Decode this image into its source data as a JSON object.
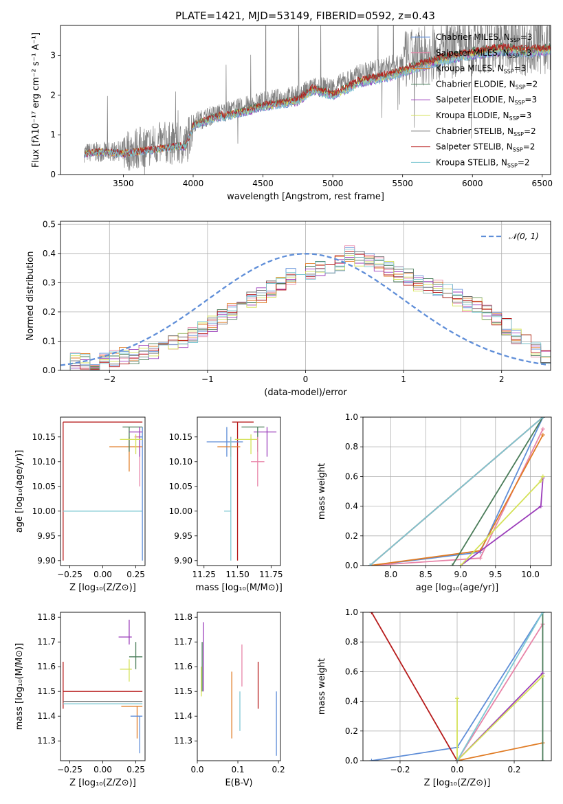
{
  "colors": {
    "chabrier_miles": "#5f8ed8",
    "salpeter_miles": "#e884a8",
    "kroupa_miles": "#e07b24",
    "chabrier_elodie": "#4a7c59",
    "salpeter_elodie": "#9b3dba",
    "kroupa_elodie": "#d4e157",
    "chabrier_stelib": "#6f6f6f",
    "salpeter_stelib": "#b71c1c",
    "kroupa_stelib": "#7ec8d3",
    "gaussian": "#5f8ed8"
  },
  "chart_data": [
    {
      "type": "line",
      "title": "PLATE=1421, MJD=53149, FIBERID=0592, z=0.43",
      "xlabel": "wavelength [Angstrom, rest frame]",
      "ylabel": "Flux [fλ10⁻¹⁷ erg cm⁻² s⁻¹ A⁻¹]",
      "xlim": [
        3050,
        6560
      ],
      "ylim": [
        0,
        3.75
      ],
      "xticks": [
        "3500",
        "4000",
        "4500",
        "5000",
        "5500",
        "6000",
        "6500"
      ],
      "yticks": [
        "0",
        "1",
        "2",
        "3"
      ],
      "legend_position": "top-right",
      "legend": [
        "Chabrier MILES, N_SSP=3",
        "Salpeter MILES, N_SSP=3",
        "Kroupa MILES, N_SSP=3",
        "Chabrier ELODIE, N_SSP=2",
        "Salpeter ELODIE, N_SSP=3",
        "Kroupa ELODIE, N_SSP=3",
        "Chabrier STELIB, N_SSP=2",
        "Salpeter STELIB, N_SSP=2",
        "Kroupa STELIB, N_SSP=2"
      ],
      "data_spectrum": {
        "x": [
          3220,
          3500,
          3800,
          3950,
          4000,
          4100,
          4300,
          4500,
          4750,
          4860,
          5000,
          5200,
          5400,
          5600,
          5800,
          6000,
          6200,
          6400,
          6560
        ],
        "y": [
          0.55,
          0.6,
          0.8,
          0.75,
          1.3,
          1.45,
          1.65,
          1.85,
          2.0,
          2.2,
          2.2,
          2.55,
          2.75,
          2.95,
          3.1,
          3.2,
          3.35,
          3.2,
          3.3
        ]
      },
      "model_spectrum": {
        "x": [
          3220,
          3350,
          3500,
          3700,
          3900,
          3950,
          4000,
          4150,
          4300,
          4500,
          4750,
          4860,
          5000,
          5200,
          5400,
          5600,
          5800,
          6000,
          6200,
          6400,
          6560
        ],
        "y": [
          0.55,
          0.6,
          0.55,
          0.65,
          0.75,
          0.75,
          1.3,
          1.5,
          1.6,
          1.8,
          1.95,
          2.25,
          2.1,
          2.45,
          2.6,
          2.85,
          3.05,
          3.2,
          3.3,
          3.25,
          3.3
        ]
      }
    },
    {
      "type": "step-histogram",
      "xlabel": "(data-model)/error",
      "ylabel": "Normed distribution",
      "xlim": [
        -2.5,
        2.5
      ],
      "ylim": [
        0,
        0.51
      ],
      "xticks": [
        "−2",
        "−1",
        "0",
        "1",
        "2"
      ],
      "yticks": [
        "0.0",
        "0.1",
        "0.2",
        "0.3",
        "0.4",
        "0.5"
      ],
      "grid": true,
      "legend_position": "top-right",
      "gaussian_label": "𝒩(0, 1)",
      "bin_edges_range": [
        -2.5,
        2.5
      ],
      "bins": 50,
      "histogram_values": [
        0.02,
        0.03,
        0.03,
        0.03,
        0.04,
        0.04,
        0.05,
        0.05,
        0.06,
        0.07,
        0.08,
        0.09,
        0.1,
        0.12,
        0.14,
        0.16,
        0.18,
        0.2,
        0.22,
        0.24,
        0.26,
        0.28,
        0.3,
        0.32,
        0.33,
        0.34,
        0.35,
        0.36,
        0.37,
        0.4,
        0.38,
        0.37,
        0.36,
        0.35,
        0.33,
        0.32,
        0.3,
        0.29,
        0.28,
        0.27,
        0.25,
        0.23,
        0.22,
        0.2,
        0.18,
        0.15,
        0.12,
        0.1,
        0.07,
        0.05
      ]
    },
    {
      "type": "scatter-errorbar",
      "xlabel": "Z [log₁₀(Z/Z⊙)]",
      "ylabel": "age  [log₁₀(age/yr)]",
      "xlim": [
        -0.32,
        0.32
      ],
      "ylim": [
        9.89,
        10.19
      ],
      "xticks": [
        "−0.25",
        "0.00",
        "0.25"
      ],
      "yticks": [
        "9.90",
        "9.95",
        "10.00",
        "10.05",
        "10.10",
        "10.15"
      ],
      "points": [
        {
          "series": "salpeter_stelib",
          "x": -0.3,
          "y": 10.18,
          "xerr": [
            0.0,
            0.6
          ],
          "yerr": [
            0.28,
            0.0
          ]
        },
        {
          "series": "kroupa_stelib",
          "x": -0.3,
          "y": 10.0,
          "xerr": [
            0.0,
            0.6
          ],
          "yerr": [
            0.0,
            0.0
          ]
        },
        {
          "series": "chabrier_miles",
          "x": 0.3,
          "y": 10.15,
          "xerr": [
            0.05,
            0.0
          ],
          "yerr": [
            0.25,
            0.02
          ]
        },
        {
          "series": "salpeter_miles",
          "x": 0.28,
          "y": 10.15,
          "xerr": [
            0.04,
            0.0
          ],
          "yerr": [
            0.1,
            0.02
          ]
        },
        {
          "series": "kroupa_miles",
          "x": 0.2,
          "y": 10.13,
          "xerr": [
            0.15,
            0.1
          ],
          "yerr": [
            0.05,
            0.02
          ]
        },
        {
          "series": "chabrier_elodie",
          "x": 0.2,
          "y": 10.17,
          "xerr": [
            0.05,
            0.1
          ],
          "yerr": [
            0.05,
            0.0
          ]
        },
        {
          "series": "salpeter_elodie",
          "x": 0.28,
          "y": 10.16,
          "xerr": [
            0.08,
            0.02
          ],
          "yerr": [
            0.05,
            0.01
          ]
        },
        {
          "series": "kroupa_elodie",
          "x": 0.25,
          "y": 10.145,
          "xerr": [
            0.12,
            0.05
          ],
          "yerr": [
            0.03,
            0.01
          ]
        }
      ]
    },
    {
      "type": "scatter-errorbar",
      "xlabel": "mass [log₁₀(M/M⊙)]",
      "ylabel": "",
      "xlim": [
        11.2,
        11.82
      ],
      "ylim": [
        9.89,
        10.19
      ],
      "xticks": [
        "11.25",
        "11.50",
        "11.75"
      ],
      "yticks": [
        "9.90",
        "9.95",
        "10.00",
        "10.05",
        "10.10",
        "10.15"
      ],
      "points": [
        {
          "series": "salpeter_stelib",
          "x": 11.5,
          "y": 10.18,
          "xerr": [
            0.04,
            0.12
          ],
          "yerr": [
            0.28,
            0.0
          ]
        },
        {
          "series": "chabrier_miles",
          "x": 11.42,
          "y": 10.14,
          "xerr": [
            0.15,
            0.12
          ],
          "yerr": [
            0.03,
            0.03
          ]
        },
        {
          "series": "kroupa_miles",
          "x": 11.45,
          "y": 10.13,
          "xerr": [
            0.1,
            0.07
          ],
          "yerr": [
            0.02,
            0.02
          ]
        },
        {
          "series": "salpeter_elodie",
          "x": 11.72,
          "y": 10.16,
          "xerr": [
            0.1,
            0.07
          ],
          "yerr": [
            0.05,
            0.01
          ]
        },
        {
          "series": "chabrier_elodie",
          "x": 11.65,
          "y": 10.17,
          "xerr": [
            0.12,
            0.05
          ],
          "yerr": [
            0.05,
            0.0
          ]
        },
        {
          "series": "kroupa_elodie",
          "x": 11.6,
          "y": 10.145,
          "xerr": [
            0.12,
            0.05
          ],
          "yerr": [
            0.03,
            0.01
          ]
        },
        {
          "series": "salpeter_miles",
          "x": 11.65,
          "y": 10.1,
          "xerr": [
            0.05,
            0.05
          ],
          "yerr": [
            0.05,
            0.05
          ]
        },
        {
          "series": "kroupa_stelib",
          "x": 11.45,
          "y": 10.0,
          "xerr": [
            0.05,
            0.0
          ],
          "yerr": [
            0.1,
            0.15
          ]
        }
      ]
    },
    {
      "type": "line",
      "xlabel": "age  [log₁₀(age/yr)]",
      "ylabel": "mass weight",
      "xlim": [
        7.6,
        10.3
      ],
      "ylim": [
        0,
        1.0
      ],
      "xticks": [
        "8.0",
        "8.5",
        "9.0",
        "9.5",
        "10.0"
      ],
      "yticks": [
        "0.0",
        "0.2",
        "0.4",
        "0.6",
        "0.8",
        "1.0"
      ],
      "grid": true,
      "series": [
        {
          "key": "chabrier_miles",
          "x": [
            7.7,
            9.28,
            10.18
          ],
          "y": [
            0.0,
            0.09,
            1.0
          ]
        },
        {
          "key": "salpeter_miles",
          "x": [
            7.7,
            9.28,
            10.18
          ],
          "y": [
            0.0,
            0.05,
            0.92
          ]
        },
        {
          "key": "kroupa_miles",
          "x": [
            7.7,
            9.28,
            10.18
          ],
          "y": [
            0.0,
            0.1,
            0.88
          ]
        },
        {
          "key": "chabrier_elodie",
          "x": [
            8.88,
            10.18
          ],
          "y": [
            0.0,
            1.0
          ]
        },
        {
          "key": "salpeter_elodie",
          "x": [
            9.0,
            10.15,
            10.18
          ],
          "y": [
            0.0,
            0.4,
            0.59
          ]
        },
        {
          "key": "kroupa_elodie",
          "x": [
            9.0,
            10.15,
            10.18
          ],
          "y": [
            0.0,
            0.57,
            0.6
          ]
        },
        {
          "key": "chabrier_stelib",
          "x": [
            7.7,
            10.18
          ],
          "y": [
            0.0,
            1.0
          ]
        },
        {
          "key": "salpeter_stelib",
          "x": [
            7.7,
            10.18
          ],
          "y": [
            0.0,
            1.0
          ]
        },
        {
          "key": "kroupa_stelib",
          "x": [
            7.7,
            10.18
          ],
          "y": [
            0.0,
            1.0
          ]
        }
      ]
    },
    {
      "type": "scatter-errorbar",
      "xlabel": "Z [log₁₀(Z/Z⊙)]",
      "ylabel": "mass [log₁₀(M/M⊙)]",
      "xlim": [
        -0.32,
        0.32
      ],
      "ylim": [
        11.22,
        11.82
      ],
      "xticks": [
        "−0.25",
        "0.00",
        "0.25"
      ],
      "yticks": [
        "11.3",
        "11.4",
        "11.5",
        "11.6",
        "11.7",
        "11.8"
      ],
      "points": [
        {
          "series": "salpeter_stelib",
          "x": -0.3,
          "y": 11.5,
          "xerr": [
            0.0,
            0.6
          ],
          "yerr": [
            0.07,
            0.12
          ]
        },
        {
          "series": "chabrier_stelib",
          "x": -0.3,
          "y": 11.46,
          "xerr": [
            0.0,
            0.6
          ],
          "yerr": [
            0.0,
            0.0
          ]
        },
        {
          "series": "kroupa_stelib",
          "x": -0.3,
          "y": 11.45,
          "xerr": [
            0.0,
            0.6
          ],
          "yerr": [
            0.0,
            0.0
          ]
        },
        {
          "series": "salpeter_elodie",
          "x": 0.2,
          "y": 11.72,
          "xerr": [
            0.08,
            0.02
          ],
          "yerr": [
            0.03,
            0.07
          ]
        },
        {
          "series": "chabrier_elodie",
          "x": 0.25,
          "y": 11.64,
          "xerr": [
            0.05,
            0.05
          ],
          "yerr": [
            0.05,
            0.06
          ]
        },
        {
          "series": "kroupa_elodie",
          "x": 0.2,
          "y": 11.59,
          "xerr": [
            0.07,
            0.02
          ],
          "yerr": [
            0.05,
            0.04
          ]
        },
        {
          "series": "kroupa_miles",
          "x": 0.26,
          "y": 11.44,
          "xerr": [
            0.12,
            0.04
          ],
          "yerr": [
            0.13,
            0.0
          ]
        },
        {
          "series": "chabrier_miles",
          "x": 0.28,
          "y": 11.4,
          "xerr": [
            0.07,
            0.02
          ],
          "yerr": [
            0.15,
            0.0
          ]
        }
      ]
    },
    {
      "type": "scatter-errorbar",
      "xlabel": "E(B-V)",
      "ylabel": "",
      "xlim": [
        0.0,
        0.205
      ],
      "ylim": [
        11.22,
        11.82
      ],
      "xticks": [
        "0.0",
        "0.1",
        "0.2"
      ],
      "yticks": [
        "11.3",
        "11.4",
        "11.5",
        "11.6",
        "11.7",
        "11.8"
      ],
      "points": [
        {
          "series": "salpeter_elodie",
          "x": 0.015,
          "y": 11.6,
          "xerr": [
            0.0,
            0.0
          ],
          "yerr": [
            0.1,
            0.18
          ]
        },
        {
          "series": "chabrier_elodie",
          "x": 0.012,
          "y": 11.55,
          "xerr": [
            0.0,
            0.0
          ],
          "yerr": [
            0.05,
            0.15
          ]
        },
        {
          "series": "kroupa_elodie",
          "x": 0.01,
          "y": 11.5,
          "xerr": [
            0.0,
            0.0
          ],
          "yerr": [
            0.02,
            0.1
          ]
        },
        {
          "series": "kroupa_miles",
          "x": 0.085,
          "y": 11.45,
          "xerr": [
            0.0,
            0.0
          ],
          "yerr": [
            0.14,
            0.13
          ]
        },
        {
          "series": "kroupa_stelib",
          "x": 0.105,
          "y": 11.42,
          "xerr": [
            0.0,
            0.0
          ],
          "yerr": [
            0.08,
            0.08
          ]
        },
        {
          "series": "salpeter_miles",
          "x": 0.11,
          "y": 11.6,
          "xerr": [
            0.0,
            0.0
          ],
          "yerr": [
            0.08,
            0.09
          ]
        },
        {
          "series": "salpeter_stelib",
          "x": 0.15,
          "y": 11.52,
          "xerr": [
            0.0,
            0.0
          ],
          "yerr": [
            0.09,
            0.1
          ]
        },
        {
          "series": "chabrier_miles",
          "x": 0.195,
          "y": 11.4,
          "xerr": [
            0.0,
            0.0
          ],
          "yerr": [
            0.16,
            0.1
          ]
        }
      ]
    },
    {
      "type": "line",
      "xlabel": "Z [log₁₀(Z/Z⊙)]",
      "ylabel": "mass weight",
      "xlim": [
        -0.33,
        0.33
      ],
      "ylim": [
        0,
        1.0
      ],
      "xticks": [
        "−0.2",
        "0.0",
        "0.2"
      ],
      "yticks": [
        "0.0",
        "0.2",
        "0.4",
        "0.6",
        "0.8",
        "1.0"
      ],
      "grid": true,
      "series": [
        {
          "key": "chabrier_miles",
          "x": [
            -0.3,
            0.0,
            0.3
          ],
          "y": [
            0.0,
            0.09,
            1.0
          ]
        },
        {
          "key": "salpeter_miles",
          "x": [
            0.0,
            0.3
          ],
          "y": [
            0.0,
            0.92
          ]
        },
        {
          "key": "kroupa_miles",
          "x": [
            0.0,
            0.3
          ],
          "y": [
            0.0,
            0.12
          ]
        },
        {
          "key": "chabrier_elodie",
          "x": [
            0.3,
            0.3
          ],
          "y": [
            0.0,
            1.0
          ]
        },
        {
          "key": "salpeter_elodie",
          "x": [
            0.0,
            0.3
          ],
          "y": [
            0.0,
            0.59
          ]
        },
        {
          "key": "kroupa_elodie",
          "x": [
            0.0,
            0.0,
            0.3
          ],
          "y": [
            0.42,
            0.0,
            0.57
          ]
        },
        {
          "key": "salpeter_stelib",
          "x": [
            -0.3,
            0.0
          ],
          "y": [
            1.0,
            0.0
          ]
        },
        {
          "key": "kroupa_stelib",
          "x": [
            0.0,
            0.3
          ],
          "y": [
            0.0,
            1.0
          ]
        }
      ]
    }
  ]
}
